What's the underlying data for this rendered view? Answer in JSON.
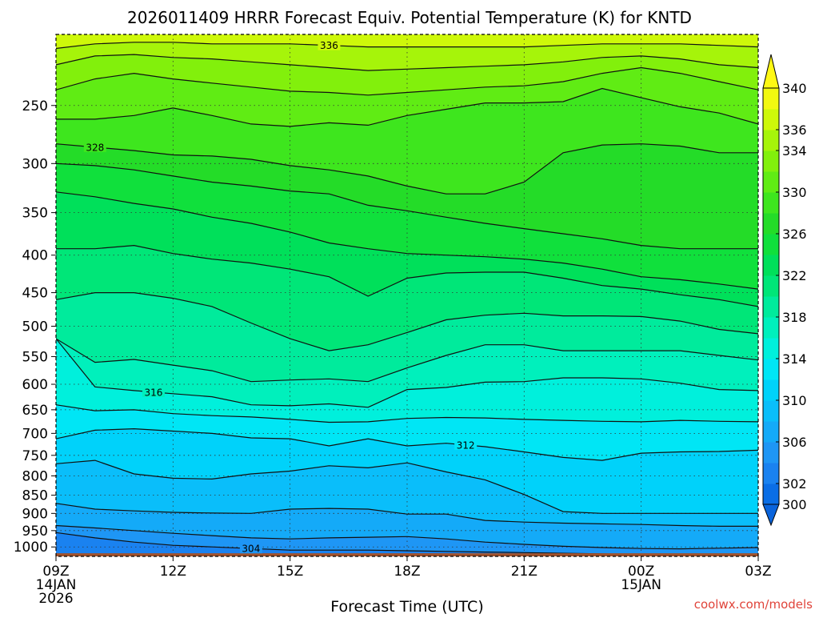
{
  "chart_data": {
    "type": "heatmap",
    "title": "2026011409 HRRR Forecast Equiv. Potential Temperature (K) for KNTD",
    "xlabel": "Forecast Time (UTC)",
    "ylabel": "",
    "credit": "coolwx.com/models",
    "y_scale": "log-pressure",
    "ylim": [
      1030,
      200
    ],
    "xlim": [
      0,
      18
    ],
    "grid": true,
    "x_ticks": [
      {
        "label": "09Z",
        "sub1": "14JAN",
        "sub2": "2026",
        "hour": 0
      },
      {
        "label": "12Z",
        "sub1": "",
        "sub2": "",
        "hour": 3
      },
      {
        "label": "15Z",
        "sub1": "",
        "sub2": "",
        "hour": 6
      },
      {
        "label": "18Z",
        "sub1": "",
        "sub2": "",
        "hour": 9
      },
      {
        "label": "21Z",
        "sub1": "",
        "sub2": "",
        "hour": 12
      },
      {
        "label": "00Z",
        "sub1": "15JAN",
        "sub2": "",
        "hour": 15
      },
      {
        "label": "03Z",
        "sub1": "",
        "sub2": "",
        "hour": 18
      }
    ],
    "y_ticks": [
      250,
      300,
      350,
      400,
      450,
      500,
      550,
      600,
      650,
      700,
      750,
      800,
      850,
      900,
      950,
      1000
    ],
    "colorbar": {
      "levels": [
        300,
        302,
        304,
        306,
        308,
        310,
        312,
        314,
        316,
        318,
        320,
        322,
        324,
        326,
        328,
        330,
        332,
        334,
        336,
        338,
        340
      ],
      "labels": [
        300,
        302,
        306,
        310,
        314,
        318,
        322,
        326,
        330,
        334,
        336,
        340
      ],
      "colors": [
        "#0a6ee6",
        "#1a82f0",
        "#1e96f5",
        "#14aaf8",
        "#0abefa",
        "#00d2fa",
        "#00e6f5",
        "#00f0dc",
        "#00f0bc",
        "#00eb9c",
        "#00e678",
        "#00e05a",
        "#10e03c",
        "#24dc28",
        "#3ee61e",
        "#60ec14",
        "#82f00c",
        "#a6f40a",
        "#cef80a",
        "#f2f810"
      ]
    },
    "contours": [
      {
        "level": 304,
        "label": "304",
        "p": [
          956,
          972,
          985,
          995,
          1000,
          1005,
          1010,
          1010,
          1010,
          1012,
          1014,
          1016,
          1018,
          1020,
          1022,
          1024,
          1025,
          1026,
          1026
        ]
      },
      {
        "level": 306,
        "label": "",
        "p": [
          935,
          942,
          950,
          958,
          965,
          972,
          975,
          972,
          970,
          968,
          975,
          985,
          992,
          998,
          1002,
          1005,
          1006,
          1004,
          1002
        ]
      },
      {
        "level": 308,
        "label": "",
        "p": [
          872,
          888,
          893,
          897,
          899,
          900,
          888,
          886,
          888,
          902,
          902,
          920,
          925,
          928,
          930,
          932,
          935,
          937,
          937
        ]
      },
      {
        "level": 310,
        "label": "",
        "p": [
          770,
          762,
          795,
          806,
          808,
          795,
          788,
          775,
          780,
          768,
          790,
          810,
          848,
          895,
          900,
          900,
          900,
          900,
          900
        ]
      },
      {
        "level": 312,
        "label": "312",
        "p": [
          712,
          693,
          690,
          695,
          700,
          710,
          712,
          728,
          712,
          728,
          722,
          730,
          742,
          755,
          762,
          745,
          742,
          741,
          738
        ]
      },
      {
        "level": 314,
        "label": "",
        "p": [
          640,
          652,
          650,
          658,
          662,
          665,
          670,
          676,
          675,
          668,
          666,
          667,
          670,
          672,
          674,
          675,
          672,
          674,
          675
        ]
      },
      {
        "level": 316,
        "label": "316",
        "p": [
          520,
          605,
          612,
          618,
          624,
          640,
          642,
          638,
          645,
          610,
          606,
          596,
          595,
          588,
          588,
          590,
          598,
          610,
          612
        ]
      },
      {
        "level": 318,
        "label": "",
        "p": [
          520,
          560,
          555,
          565,
          575,
          595,
          592,
          590,
          595,
          570,
          548,
          530,
          530,
          540,
          540,
          540,
          540,
          548,
          556
        ]
      },
      {
        "level": 320,
        "label": "",
        "p": [
          460,
          450,
          450,
          458,
          470,
          495,
          520,
          540,
          530,
          510,
          490,
          483,
          480,
          484,
          484,
          485,
          492,
          505,
          512
        ]
      },
      {
        "level": 322,
        "label": "",
        "p": [
          392,
          392,
          388,
          398,
          405,
          410,
          418,
          428,
          455,
          430,
          423,
          422,
          422,
          430,
          440,
          445,
          453,
          460,
          470
        ]
      },
      {
        "level": 324,
        "label": "",
        "p": [
          328,
          333,
          340,
          346,
          355,
          362,
          372,
          385,
          392,
          398,
          400,
          402,
          405,
          410,
          418,
          428,
          432,
          438,
          445
        ]
      },
      {
        "level": 326,
        "label": "",
        "p": [
          300,
          302,
          306,
          312,
          318,
          322,
          327,
          330,
          342,
          348,
          355,
          362,
          368,
          374,
          380,
          388,
          392,
          392,
          392
        ]
      },
      {
        "level": 328,
        "label": "328",
        "p": [
          282,
          285,
          288,
          292,
          293,
          296,
          302,
          306,
          312,
          322,
          330,
          330,
          318,
          290,
          283,
          282,
          284,
          290,
          290
        ]
      },
      {
        "level": 330,
        "label": "",
        "p": [
          261,
          261,
          258,
          252,
          258,
          265,
          267,
          264,
          266,
          258,
          253,
          248,
          248,
          247,
          237,
          244,
          251,
          256,
          265
        ]
      },
      {
        "level": 332,
        "label": "",
        "p": [
          238,
          230,
          226,
          230,
          233,
          236,
          239,
          240,
          242,
          240,
          238,
          236,
          235,
          232,
          226,
          222,
          226,
          232,
          238
        ]
      },
      {
        "level": 334,
        "label": "",
        "p": [
          220,
          214,
          213,
          215,
          216,
          218,
          220,
          222,
          224,
          223,
          222,
          221,
          220,
          218,
          215,
          214,
          216,
          220,
          222
        ]
      },
      {
        "level": 336,
        "label": "336",
        "p": [
          209,
          206,
          205,
          205,
          206,
          206,
          206,
          207,
          208,
          208,
          208,
          208,
          208,
          207,
          206,
          206,
          206,
          207,
          208
        ]
      }
    ],
    "contour_label_hours": {
      "304": 5,
      "312": 10.5,
      "316": 2.5,
      "328": 1,
      "336": 7
    }
  }
}
